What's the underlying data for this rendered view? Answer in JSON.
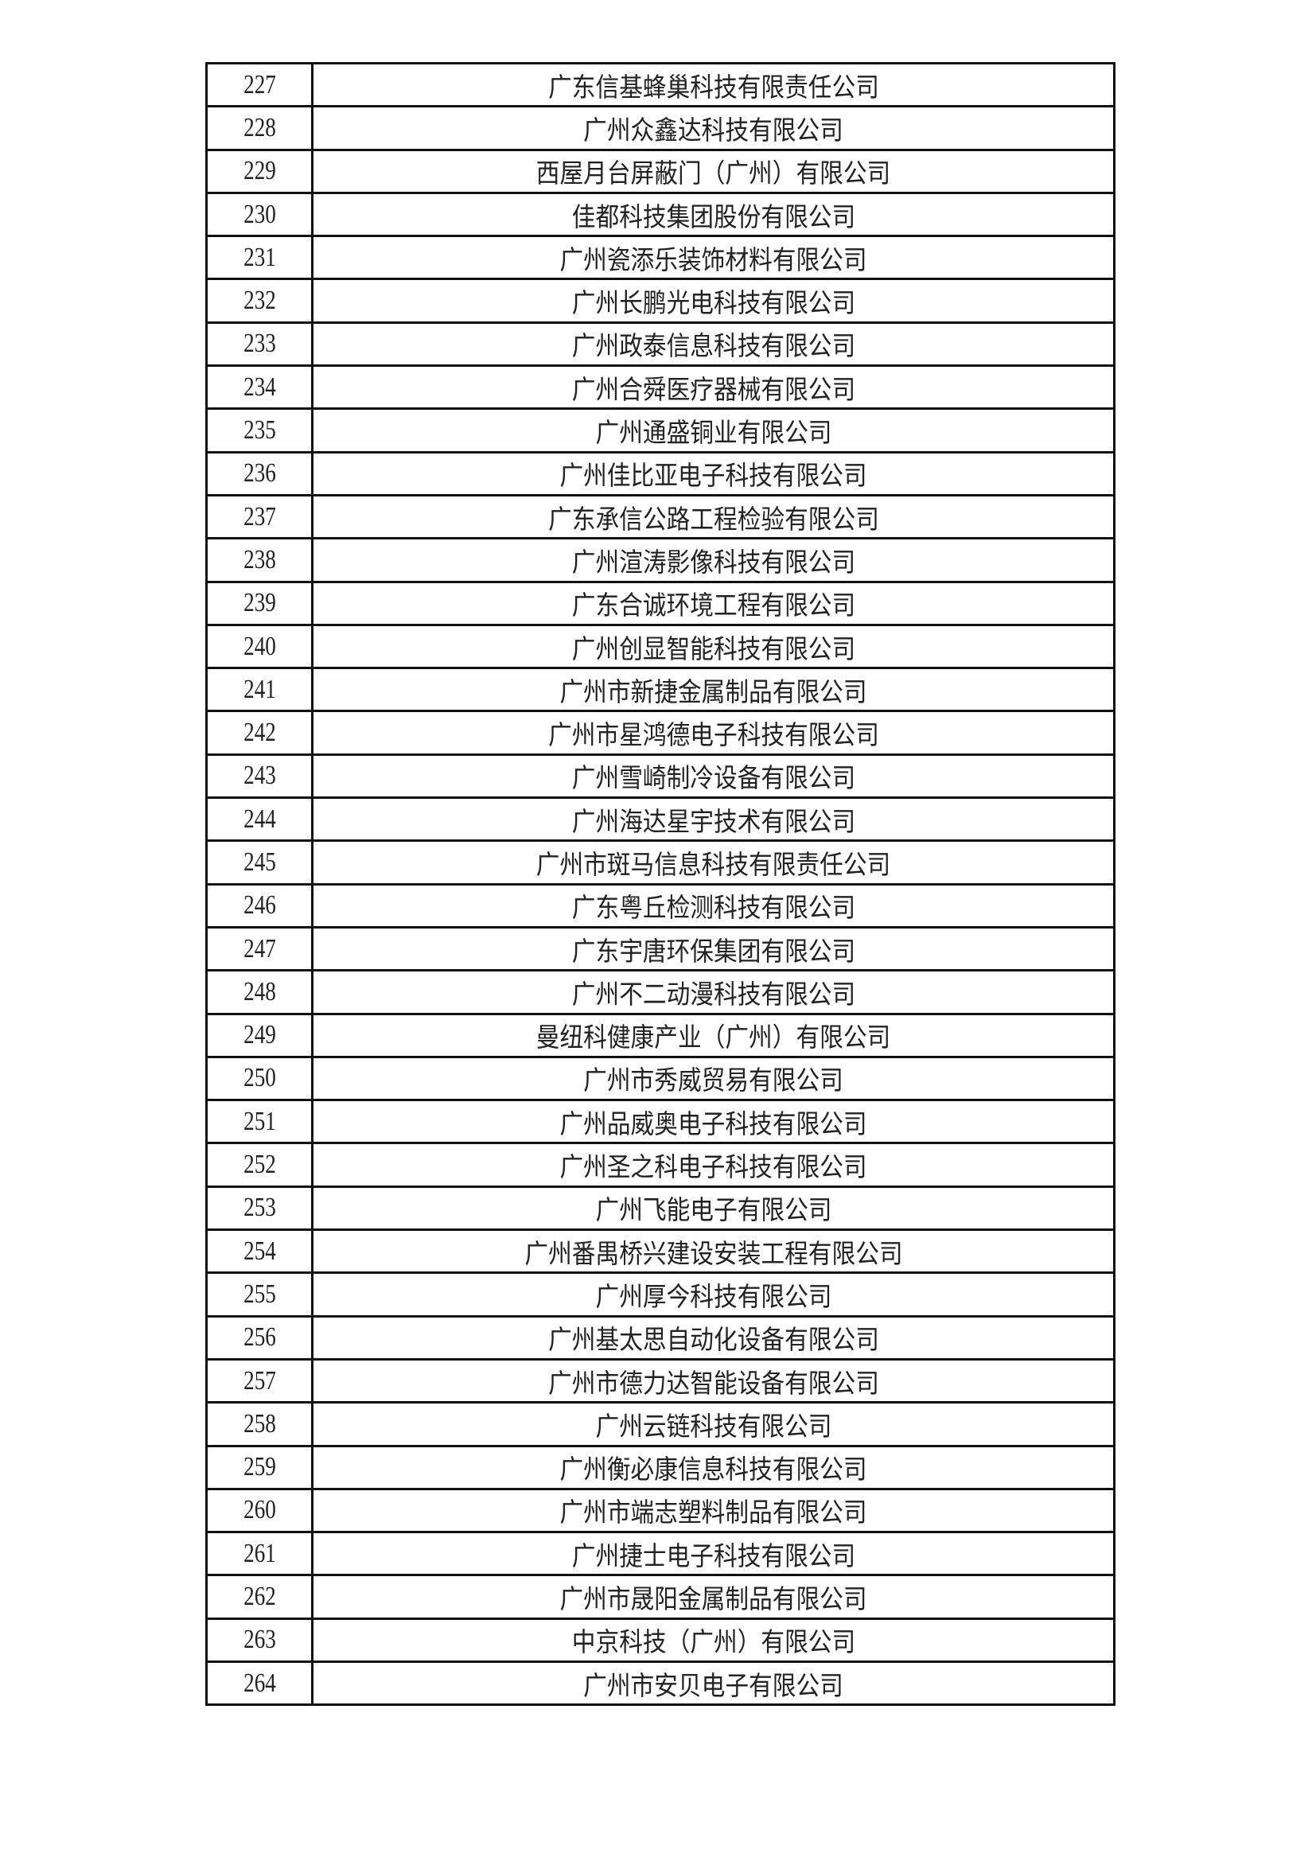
{
  "rows": [
    {
      "no": "227",
      "name": "广东信基蜂巢科技有限责任公司"
    },
    {
      "no": "228",
      "name": "广州众鑫达科技有限公司"
    },
    {
      "no": "229",
      "name": "西屋月台屏蔽门（广州）有限公司"
    },
    {
      "no": "230",
      "name": "佳都科技集团股份有限公司"
    },
    {
      "no": "231",
      "name": "广州瓷添乐装饰材料有限公司"
    },
    {
      "no": "232",
      "name": "广州长鹏光电科技有限公司"
    },
    {
      "no": "233",
      "name": "广州政泰信息科技有限公司"
    },
    {
      "no": "234",
      "name": "广州合舜医疗器械有限公司"
    },
    {
      "no": "235",
      "name": "广州通盛铜业有限公司"
    },
    {
      "no": "236",
      "name": "广州佳比亚电子科技有限公司"
    },
    {
      "no": "237",
      "name": "广东承信公路工程检验有限公司"
    },
    {
      "no": "238",
      "name": "广州渲涛影像科技有限公司"
    },
    {
      "no": "239",
      "name": "广东合诚环境工程有限公司"
    },
    {
      "no": "240",
      "name": "广州创显智能科技有限公司"
    },
    {
      "no": "241",
      "name": "广州市新捷金属制品有限公司"
    },
    {
      "no": "242",
      "name": "广州市星鸿德电子科技有限公司"
    },
    {
      "no": "243",
      "name": "广州雪崎制冷设备有限公司"
    },
    {
      "no": "244",
      "name": "广州海达星宇技术有限公司"
    },
    {
      "no": "245",
      "name": "广州市斑马信息科技有限责任公司"
    },
    {
      "no": "246",
      "name": "广东粤丘检测科技有限公司"
    },
    {
      "no": "247",
      "name": "广东宇唐环保集团有限公司"
    },
    {
      "no": "248",
      "name": "广州不二动漫科技有限公司"
    },
    {
      "no": "249",
      "name": "曼纽科健康产业（广州）有限公司"
    },
    {
      "no": "250",
      "name": "广州市秀威贸易有限公司"
    },
    {
      "no": "251",
      "name": "广州品威奥电子科技有限公司"
    },
    {
      "no": "252",
      "name": "广州圣之科电子科技有限公司"
    },
    {
      "no": "253",
      "name": "广州飞能电子有限公司"
    },
    {
      "no": "254",
      "name": "广州番禺桥兴建设安装工程有限公司"
    },
    {
      "no": "255",
      "name": "广州厚今科技有限公司"
    },
    {
      "no": "256",
      "name": "广州基太思自动化设备有限公司"
    },
    {
      "no": "257",
      "name": "广州市德力达智能设备有限公司"
    },
    {
      "no": "258",
      "name": "广州云链科技有限公司"
    },
    {
      "no": "259",
      "name": "广州衡必康信息科技有限公司"
    },
    {
      "no": "260",
      "name": "广州市端志塑料制品有限公司"
    },
    {
      "no": "261",
      "name": "广州捷士电子科技有限公司"
    },
    {
      "no": "262",
      "name": "广州市晟阳金属制品有限公司"
    },
    {
      "no": "263",
      "name": "中京科技（广州）有限公司"
    },
    {
      "no": "264",
      "name": "广州市安贝电子有限公司"
    }
  ]
}
